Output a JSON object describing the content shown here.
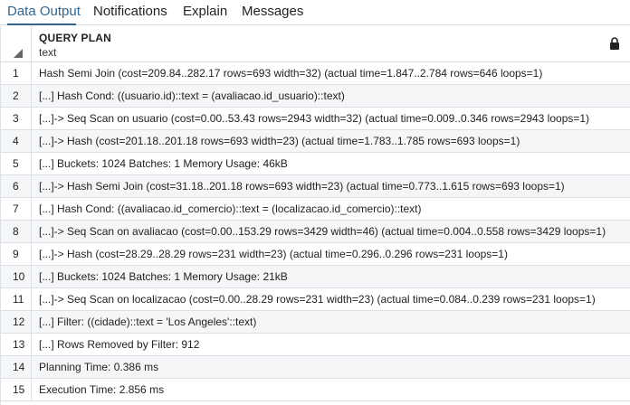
{
  "tabs": [
    {
      "label": "Data Output",
      "active": true
    },
    {
      "label": "Notifications",
      "active": false
    },
    {
      "label": "Explain",
      "active": false
    },
    {
      "label": "Messages",
      "active": false
    }
  ],
  "colors": {
    "accent": "#326690",
    "grid_line": "#dde0e6",
    "alt_row": "#f4f6f8"
  },
  "grid": {
    "column": {
      "name": "QUERY PLAN",
      "type": "text",
      "icon": "lock-icon"
    },
    "rows": [
      {
        "num": "1",
        "text": "Hash Semi Join  (cost=209.84..282.17 rows=693 width=32) (actual time=1.847..2.784 rows=646 loops=1)"
      },
      {
        "num": "2",
        "text": "[...] Hash Cond: ((usuario.id)::text = (avaliacao.id_usuario)::text)"
      },
      {
        "num": "3",
        "text": "[...]->  Seq Scan on usuario  (cost=0.00..53.43 rows=2943 width=32) (actual time=0.009..0.346 rows=2943 loops=1)"
      },
      {
        "num": "4",
        "text": "[...]->  Hash  (cost=201.18..201.18 rows=693 width=23) (actual time=1.783..1.785 rows=693 loops=1)"
      },
      {
        "num": "5",
        "text": "[...] Buckets: 1024  Batches: 1  Memory Usage: 46kB"
      },
      {
        "num": "6",
        "text": "[...]->  Hash Semi Join  (cost=31.18..201.18 rows=693 width=23) (actual time=0.773..1.615 rows=693 loops=1)"
      },
      {
        "num": "7",
        "text": "[...] Hash Cond: ((avaliacao.id_comercio)::text = (localizacao.id_comercio)::text)"
      },
      {
        "num": "8",
        "text": "[...]->  Seq Scan on avaliacao  (cost=0.00..153.29 rows=3429 width=46) (actual time=0.004..0.558 rows=3429 loops=1)"
      },
      {
        "num": "9",
        "text": "[...]->  Hash  (cost=28.29..28.29 rows=231 width=23) (actual time=0.296..0.296 rows=231 loops=1)"
      },
      {
        "num": "10",
        "text": "[...] Buckets: 1024  Batches: 1  Memory Usage: 21kB"
      },
      {
        "num": "11",
        "text": "[...]->  Seq Scan on localizacao  (cost=0.00..28.29 rows=231 width=23) (actual time=0.084..0.239 rows=231 loops=1)"
      },
      {
        "num": "12",
        "text": "[...] Filter: ((cidade)::text = 'Los Angeles'::text)"
      },
      {
        "num": "13",
        "text": "[...] Rows Removed by Filter: 912"
      },
      {
        "num": "14",
        "text": "Planning Time: 0.386 ms"
      },
      {
        "num": "15",
        "text": "Execution Time: 2.856 ms"
      }
    ]
  }
}
